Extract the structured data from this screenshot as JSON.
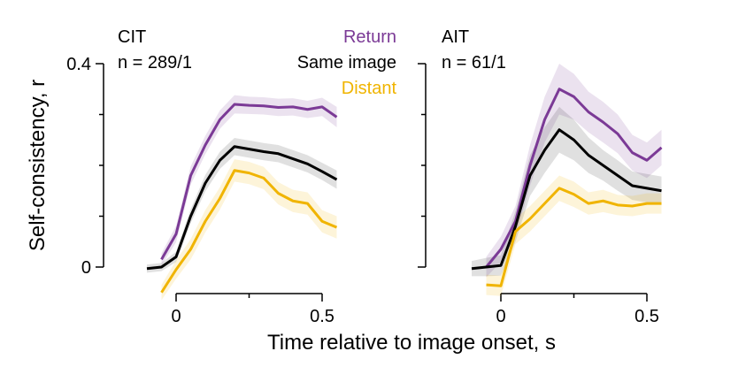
{
  "chart_data": {
    "type": "line",
    "xlabel": "Time relative to image onset, s",
    "ylabel": "Self-consistency, r",
    "xlim": [
      -0.12,
      0.57
    ],
    "ylim": [
      -0.05,
      0.4
    ],
    "xticks": [
      0,
      0.5
    ],
    "xtick_labels": [
      "0",
      "0.5"
    ],
    "yticks": [
      0,
      0.4
    ],
    "ytick_labels": [
      "0",
      "0.4"
    ],
    "grid": false,
    "legend": {
      "placement": "top-right of first panel",
      "entries": [
        {
          "label": "Return",
          "color": "#7B3A96"
        },
        {
          "label": "Same image",
          "color": "#000000"
        },
        {
          "label": "Distant",
          "color": "#F0B400"
        }
      ]
    },
    "panels": [
      {
        "title": "CIT",
        "subtitle": "n = 289/1",
        "series": [
          {
            "name": "Return",
            "color": "#7B3A96",
            "x": [
              -0.05,
              0,
              0.05,
              0.1,
              0.15,
              0.2,
              0.25,
              0.3,
              0.35,
              0.4,
              0.45,
              0.5,
              0.55
            ],
            "y": [
              0.015,
              0.065,
              0.18,
              0.24,
              0.29,
              0.32,
              0.318,
              0.317,
              0.314,
              0.315,
              0.31,
              0.315,
              0.295
            ],
            "err": [
              0.012,
              0.016,
              0.018,
              0.018,
              0.018,
              0.018,
              0.017,
              0.017,
              0.017,
              0.017,
              0.017,
              0.018,
              0.02
            ]
          },
          {
            "name": "Same image",
            "color": "#000000",
            "x": [
              -0.1,
              -0.05,
              0,
              0.05,
              0.1,
              0.15,
              0.2,
              0.25,
              0.3,
              0.35,
              0.4,
              0.45,
              0.5,
              0.55
            ],
            "y": [
              -0.003,
              0,
              0.02,
              0.1,
              0.165,
              0.21,
              0.237,
              0.232,
              0.227,
              0.223,
              0.213,
              0.203,
              0.188,
              0.172
            ],
            "err": [
              0.008,
              0.008,
              0.01,
              0.014,
              0.016,
              0.017,
              0.017,
              0.017,
              0.017,
              0.017,
              0.017,
              0.017,
              0.017,
              0.018
            ]
          },
          {
            "name": "Distant",
            "color": "#F0B400",
            "x": [
              -0.05,
              0,
              0.05,
              0.1,
              0.15,
              0.2,
              0.25,
              0.3,
              0.35,
              0.4,
              0.45,
              0.5,
              0.55
            ],
            "y": [
              -0.05,
              -0.005,
              0.035,
              0.09,
              0.135,
              0.19,
              0.185,
              0.175,
              0.145,
              0.13,
              0.125,
              0.09,
              0.078
            ],
            "err": [
              0.015,
              0.018,
              0.02,
              0.022,
              0.022,
              0.022,
              0.022,
              0.022,
              0.022,
              0.022,
              0.022,
              0.022,
              0.022
            ]
          }
        ]
      },
      {
        "title": "AIT",
        "subtitle": "n = 61/1",
        "series": [
          {
            "name": "Return",
            "color": "#7B3A96",
            "x": [
              -0.05,
              0,
              0.05,
              0.1,
              0.15,
              0.2,
              0.25,
              0.3,
              0.35,
              0.4,
              0.45,
              0.5,
              0.55
            ],
            "y": [
              0.0,
              0.035,
              0.09,
              0.2,
              0.29,
              0.35,
              0.335,
              0.305,
              0.285,
              0.262,
              0.225,
              0.21,
              0.235
            ],
            "err": [
              0.02,
              0.025,
              0.03,
              0.04,
              0.045,
              0.05,
              0.045,
              0.04,
              0.04,
              0.038,
              0.035,
              0.035,
              0.035
            ]
          },
          {
            "name": "Same image",
            "color": "#000000",
            "x": [
              -0.1,
              -0.05,
              0,
              0.05,
              0.1,
              0.15,
              0.2,
              0.25,
              0.3,
              0.35,
              0.4,
              0.45,
              0.5,
              0.55
            ],
            "y": [
              -0.003,
              0.0,
              0.003,
              0.08,
              0.18,
              0.23,
              0.27,
              0.25,
              0.22,
              0.2,
              0.18,
              0.16,
              0.155,
              0.15
            ],
            "err": [
              0.015,
              0.018,
              0.02,
              0.03,
              0.04,
              0.045,
              0.045,
              0.04,
              0.035,
              0.03,
              0.03,
              0.028,
              0.028,
              0.028
            ]
          },
          {
            "name": "Distant",
            "color": "#F0B400",
            "x": [
              -0.05,
              0,
              0.05,
              0.1,
              0.15,
              0.2,
              0.25,
              0.3,
              0.35,
              0.4,
              0.45,
              0.5,
              0.55
            ],
            "y": [
              -0.035,
              -0.037,
              0.07,
              0.095,
              0.125,
              0.155,
              0.143,
              0.125,
              0.13,
              0.122,
              0.12,
              0.125,
              0.125
            ],
            "err": [
              0.02,
              0.02,
              0.025,
              0.025,
              0.025,
              0.025,
              0.025,
              0.022,
              0.022,
              0.02,
              0.02,
              0.02,
              0.02
            ]
          }
        ]
      }
    ]
  }
}
